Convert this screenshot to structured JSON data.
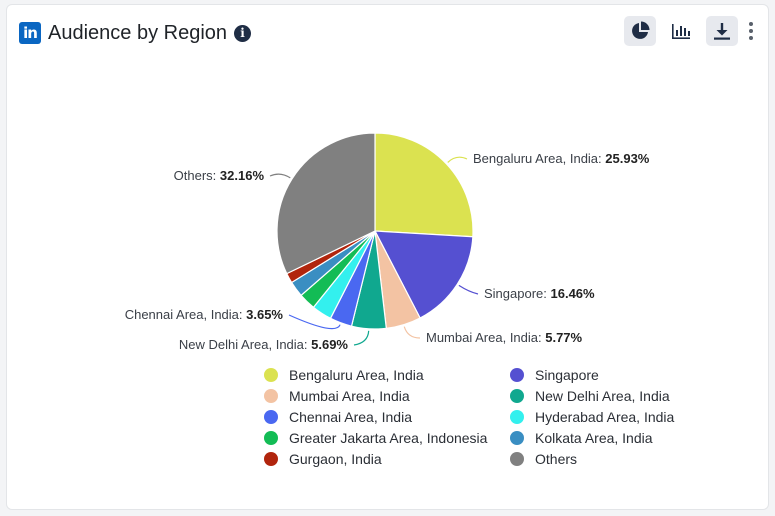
{
  "header": {
    "title": "Audience by Region",
    "info_symbol": "i"
  },
  "toolbar": {
    "pie_button_icon": "pie-chart-icon",
    "bar_button_icon": "bar-chart-icon",
    "download_button_icon": "download-icon",
    "more_button_icon": "kebab-menu-icon"
  },
  "colors": {
    "brand": "#0a66c2"
  },
  "chart_data": {
    "type": "pie",
    "title": "Audience by Region",
    "legend_position": "bottom",
    "slices": [
      {
        "label": "Bengaluru Area, India",
        "value": 25.93,
        "color": "#dbe250",
        "pct_text": "25.93%",
        "labeled": true
      },
      {
        "label": "Singapore",
        "value": 16.46,
        "color": "#5550d1",
        "pct_text": "16.46%",
        "labeled": true
      },
      {
        "label": "Mumbai Area, India",
        "value": 5.77,
        "color": "#f3c3a3",
        "pct_text": "5.77%",
        "labeled": true
      },
      {
        "label": "New Delhi Area, India",
        "value": 5.69,
        "color": "#10a88f",
        "pct_text": "5.69%",
        "labeled": true
      },
      {
        "label": "Chennai Area, India",
        "value": 3.65,
        "color": "#4a68f1",
        "pct_text": "3.65%",
        "labeled": true
      },
      {
        "label": "Hyderabad Area, India",
        "value": 3.3,
        "color": "#33f0ee",
        "pct_text": "",
        "labeled": false
      },
      {
        "label": "Greater Jakarta Area, Indonesia",
        "value": 2.8,
        "color": "#13bc55",
        "pct_text": "",
        "labeled": false
      },
      {
        "label": "Kolkata Area, India",
        "value": 2.6,
        "color": "#3a8ec2",
        "pct_text": "",
        "labeled": false
      },
      {
        "label": "Gurgaon, India",
        "value": 1.64,
        "color": "#b1250d",
        "pct_text": "",
        "labeled": false
      },
      {
        "label": "Others",
        "value": 32.16,
        "color": "#808080",
        "pct_text": "32.16%",
        "labeled": true
      }
    ]
  }
}
